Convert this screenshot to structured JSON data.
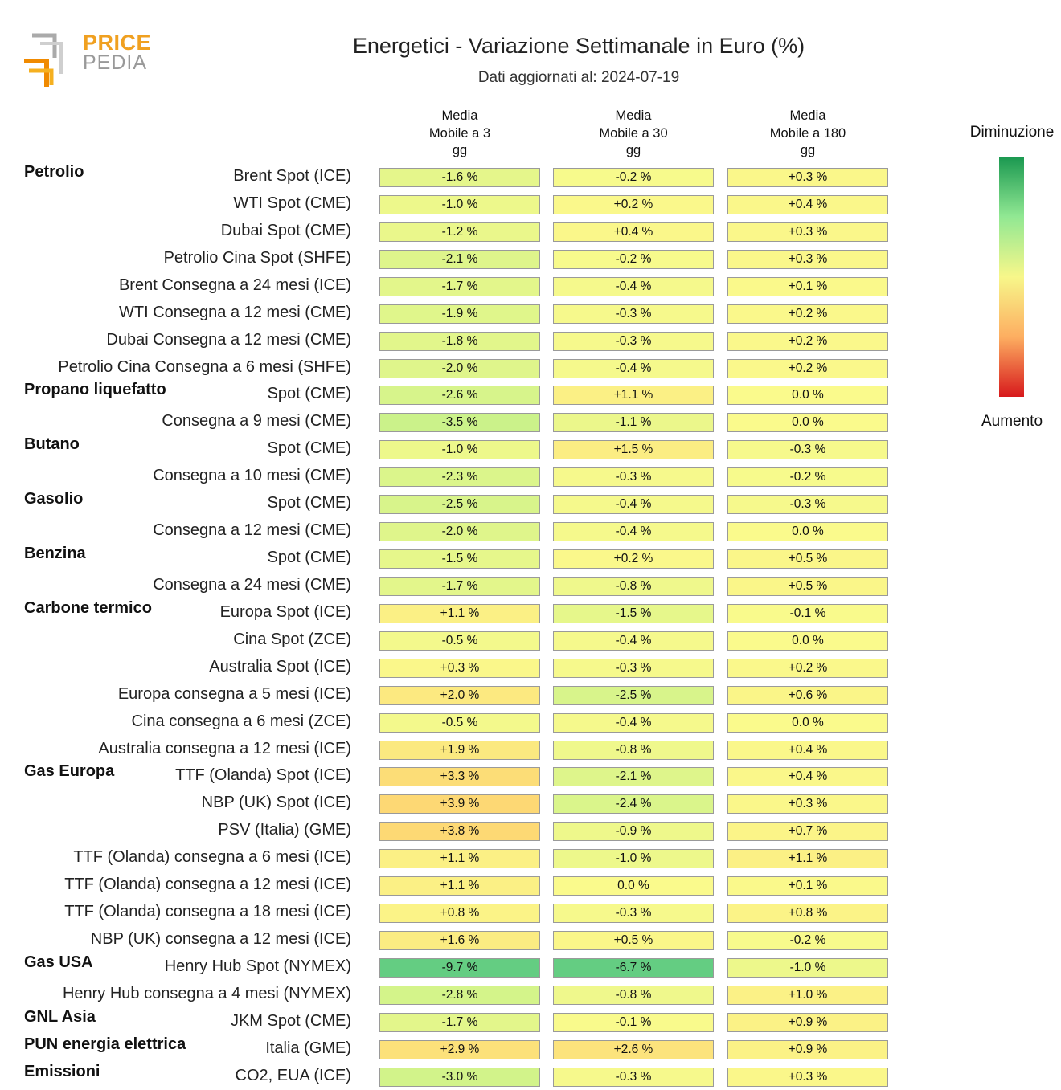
{
  "brand": {
    "line1": "PRICE",
    "line2": "PEDIA",
    "icon": "pricepedia-logo-icon"
  },
  "title": "Energetici - Variazione Settimanale in Euro (%)",
  "subtitle": "Dati aggiornati al: 2024-07-19",
  "legend": {
    "top": "Diminuzione",
    "bottom": "Aumento"
  },
  "chart_data": {
    "type": "heatmap",
    "title": "Energetici - Variazione Settimanale in Euro (%)",
    "columns": [
      "Media\nMobile a 3\ngg",
      "Media\nMobile a 30\ngg",
      "Media\nMobile a 180\ngg"
    ],
    "unit": "%",
    "rows": [
      {
        "group": "Petrolio",
        "label": "Brent Spot (ICE)",
        "values": [
          -1.6,
          -0.2,
          0.3
        ]
      },
      {
        "group": "",
        "label": "WTI Spot (CME)",
        "values": [
          -1.0,
          0.2,
          0.4
        ]
      },
      {
        "group": "",
        "label": "Dubai Spot (CME)",
        "values": [
          -1.2,
          0.4,
          0.3
        ]
      },
      {
        "group": "",
        "label": "Petrolio Cina Spot (SHFE)",
        "values": [
          -2.1,
          -0.2,
          0.3
        ]
      },
      {
        "group": "",
        "label": "Brent Consegna a 24 mesi (ICE)",
        "values": [
          -1.7,
          -0.4,
          0.1
        ]
      },
      {
        "group": "",
        "label": "WTI Consegna a 12 mesi (CME)",
        "values": [
          -1.9,
          -0.3,
          0.2
        ]
      },
      {
        "group": "",
        "label": "Dubai Consegna a 12 mesi (CME)",
        "values": [
          -1.8,
          -0.3,
          0.2
        ]
      },
      {
        "group": "",
        "label": "Petrolio Cina Consegna a 6 mesi (SHFE)",
        "values": [
          -2.0,
          -0.4,
          0.2
        ]
      },
      {
        "group": "Propano liquefatto",
        "label": "Spot (CME)",
        "values": [
          -2.6,
          1.1,
          0.0
        ]
      },
      {
        "group": "",
        "label": "Consegna a 9 mesi (CME)",
        "values": [
          -3.5,
          -1.1,
          0.0
        ]
      },
      {
        "group": "Butano",
        "label": "Spot (CME)",
        "values": [
          -1.0,
          1.5,
          -0.3
        ]
      },
      {
        "group": "",
        "label": "Consegna a 10 mesi (CME)",
        "values": [
          -2.3,
          -0.3,
          -0.2
        ]
      },
      {
        "group": "Gasolio",
        "label": "Spot (CME)",
        "values": [
          -2.5,
          -0.4,
          -0.3
        ]
      },
      {
        "group": "",
        "label": "Consegna a 12 mesi (CME)",
        "values": [
          -2.0,
          -0.4,
          0.0
        ]
      },
      {
        "group": "Benzina",
        "label": "Spot (CME)",
        "values": [
          -1.5,
          0.2,
          0.5
        ]
      },
      {
        "group": "",
        "label": "Consegna a 24 mesi (CME)",
        "values": [
          -1.7,
          -0.8,
          0.5
        ]
      },
      {
        "group": "Carbone termico",
        "label": "Europa Spot (ICE)",
        "values": [
          1.1,
          -1.5,
          -0.1
        ]
      },
      {
        "group": "",
        "label": "Cina Spot (ZCE)",
        "values": [
          -0.5,
          -0.4,
          0.0
        ]
      },
      {
        "group": "",
        "label": "Australia Spot (ICE)",
        "values": [
          0.3,
          -0.3,
          0.2
        ]
      },
      {
        "group": "",
        "label": "Europa consegna a 5 mesi (ICE)",
        "values": [
          2.0,
          -2.5,
          0.6
        ]
      },
      {
        "group": "",
        "label": "Cina consegna a 6 mesi (ZCE)",
        "values": [
          -0.5,
          -0.4,
          0.0
        ]
      },
      {
        "group": "",
        "label": "Australia consegna a 12 mesi (ICE)",
        "values": [
          1.9,
          -0.8,
          0.4
        ]
      },
      {
        "group": "Gas Europa",
        "label": "TTF (Olanda) Spot (ICE)",
        "values": [
          3.3,
          -2.1,
          0.4
        ]
      },
      {
        "group": "",
        "label": "NBP (UK) Spot (ICE)",
        "values": [
          3.9,
          -2.4,
          0.3
        ]
      },
      {
        "group": "",
        "label": "PSV (Italia) (GME)",
        "values": [
          3.8,
          -0.9,
          0.7
        ]
      },
      {
        "group": "",
        "label": "TTF (Olanda) consegna a 6 mesi (ICE)",
        "values": [
          1.1,
          -1.0,
          1.1
        ]
      },
      {
        "group": "",
        "label": "TTF (Olanda) consegna a 12 mesi (ICE)",
        "values": [
          1.1,
          0.0,
          0.1
        ]
      },
      {
        "group": "",
        "label": "TTF (Olanda) consegna a 18 mesi (ICE)",
        "values": [
          0.8,
          -0.3,
          0.8
        ]
      },
      {
        "group": "",
        "label": "NBP (UK) consegna a 12 mesi (ICE)",
        "values": [
          1.6,
          0.5,
          -0.2
        ]
      },
      {
        "group": "Gas USA",
        "label": "Henry Hub Spot (NYMEX)",
        "values": [
          -9.7,
          -6.7,
          -1.0
        ]
      },
      {
        "group": "",
        "label": "Henry Hub consegna a 4 mesi (NYMEX)",
        "values": [
          -2.8,
          -0.8,
          1.0
        ]
      },
      {
        "group": "GNL Asia",
        "label": "JKM Spot (CME)",
        "values": [
          -1.7,
          -0.1,
          0.9
        ]
      },
      {
        "group": "PUN energia elettrica",
        "label": "Italia (GME)",
        "values": [
          2.9,
          2.6,
          0.9
        ]
      },
      {
        "group": "Emissioni",
        "label": "CO2, EUA (ICE)",
        "values": [
          -3.0,
          -0.3,
          0.3
        ]
      }
    ]
  }
}
